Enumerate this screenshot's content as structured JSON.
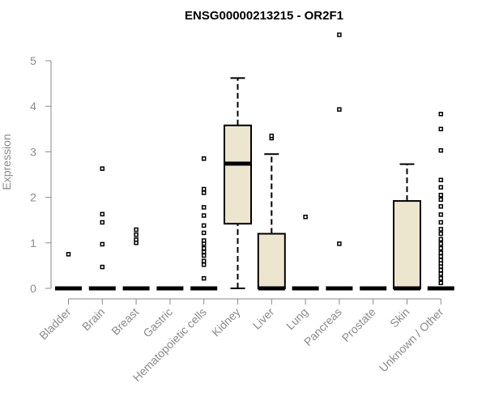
{
  "chart_data": {
    "type": "box",
    "title": "ENSG00000213215 - OR2F1",
    "xlabel": "",
    "ylabel": "Expression",
    "ylim": [
      0,
      5.5
    ],
    "yticks": [
      0,
      1,
      2,
      3,
      4,
      5
    ],
    "box_fill": "#ede6cf",
    "categories": [
      "Bladder",
      "Brain",
      "Breast",
      "Gastric",
      "Hematopoietic cells",
      "Kidney",
      "Liver",
      "Lung",
      "Pancreas",
      "Prostate",
      "Skin",
      "Unknown / Other"
    ],
    "boxes": [
      {
        "category": "Bladder",
        "min": 0,
        "q1": 0,
        "median": 0,
        "q3": 0,
        "max": 0,
        "outliers": [
          0.75
        ]
      },
      {
        "category": "Brain",
        "min": 0,
        "q1": 0,
        "median": 0,
        "q3": 0,
        "max": 0,
        "outliers": [
          0.47,
          0.97,
          1.45,
          1.63,
          2.63
        ]
      },
      {
        "category": "Breast",
        "min": 0,
        "q1": 0,
        "median": 0,
        "q3": 0,
        "max": 0,
        "outliers": [
          1.0,
          1.07,
          1.18,
          1.29
        ]
      },
      {
        "category": "Gastric",
        "min": 0,
        "q1": 0,
        "median": 0,
        "q3": 0,
        "max": 0,
        "outliers": []
      },
      {
        "category": "Hematopoietic cells",
        "min": 0,
        "q1": 0,
        "median": 0,
        "q3": 0,
        "max": 0,
        "outliers": [
          0.22,
          0.52,
          0.6,
          0.72,
          0.8,
          0.88,
          0.98,
          1.05,
          1.22,
          1.38,
          1.6,
          1.78,
          2.1,
          2.18,
          2.85
        ]
      },
      {
        "category": "Kidney",
        "min": 0,
        "q1": 1.42,
        "median": 2.74,
        "q3": 3.58,
        "max": 4.62,
        "outliers": []
      },
      {
        "category": "Liver",
        "min": 0,
        "q1": 0,
        "median": 0,
        "q3": 1.2,
        "max": 2.95,
        "outliers": [
          3.3,
          3.35
        ]
      },
      {
        "category": "Lung",
        "min": 0,
        "q1": 0,
        "median": 0,
        "q3": 0,
        "max": 0,
        "outliers": [
          1.57
        ]
      },
      {
        "category": "Pancreas",
        "min": 0,
        "q1": 0,
        "median": 0,
        "q3": 0,
        "max": 0,
        "outliers": [
          0.98,
          3.93,
          5.57
        ]
      },
      {
        "category": "Prostate",
        "min": 0,
        "q1": 0,
        "median": 0,
        "q3": 0,
        "max": 0,
        "outliers": []
      },
      {
        "category": "Skin",
        "min": 0,
        "q1": 0,
        "median": 0,
        "q3": 1.92,
        "max": 2.73,
        "outliers": []
      },
      {
        "category": "Unknown / Other",
        "min": 0,
        "q1": 0,
        "median": 0,
        "q3": 0,
        "max": 0,
        "outliers": [
          0.12,
          0.22,
          0.32,
          0.4,
          0.48,
          0.55,
          0.62,
          0.7,
          0.78,
          0.88,
          0.98,
          1.08,
          1.2,
          1.3,
          1.45,
          1.62,
          1.8,
          1.95,
          2.05,
          2.22,
          2.38,
          3.03,
          3.5,
          3.83
        ]
      }
    ]
  }
}
